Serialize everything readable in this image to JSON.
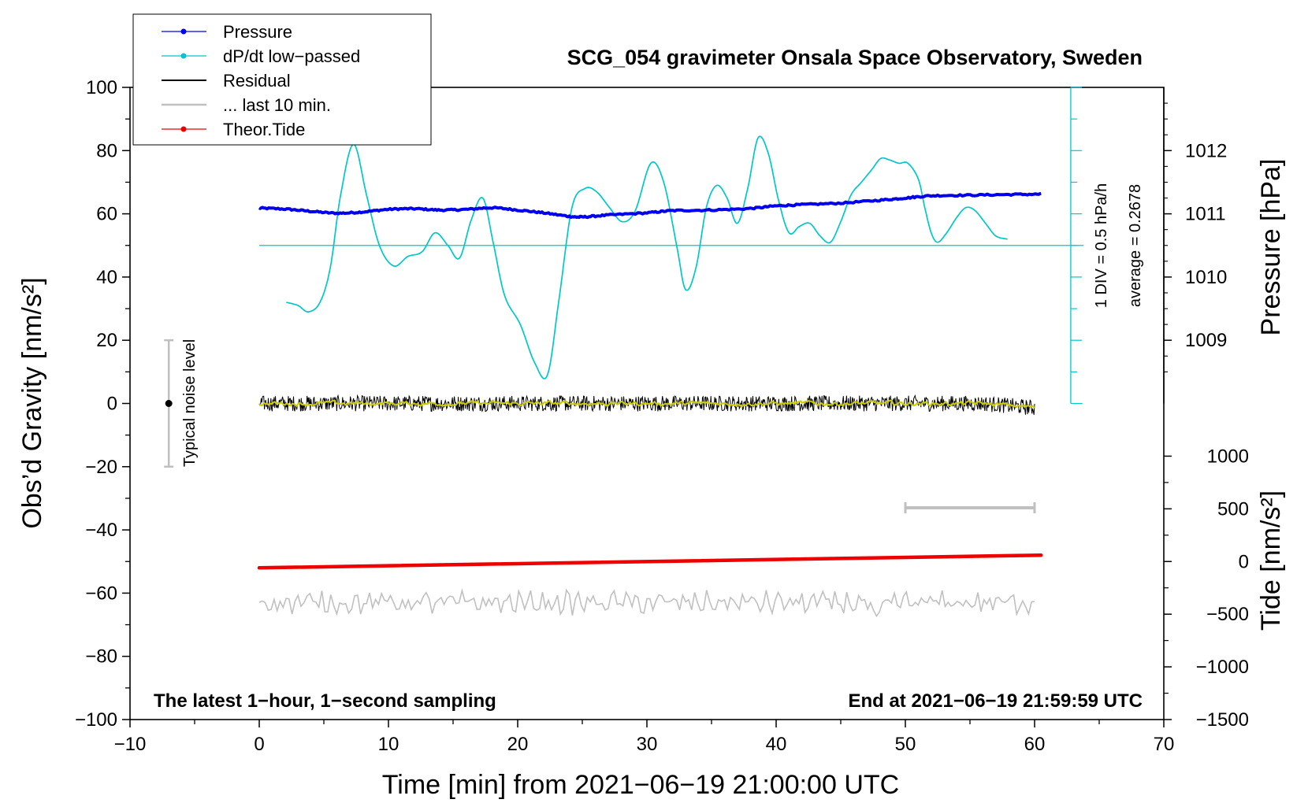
{
  "chart_data": {
    "type": "line",
    "title": "SCG_054 gravimeter Onsala Space Observatory, Sweden",
    "xlabel": "Time [min] from 2021−06−19 21:00:00 UTC",
    "ylabel_left": "Obs’d Gravity [nm/s²]",
    "ylabel_right_pressure": "Pressure [hPa]",
    "ylabel_right_tide": "Tide [nm/s²]",
    "xlim": [
      -10,
      70
    ],
    "ylim_left": [
      -100,
      100
    ],
    "x_ticks": [
      -10,
      0,
      10,
      20,
      30,
      40,
      50,
      60,
      70
    ],
    "x_tick_labels": [
      "−10",
      "0",
      "10",
      "20",
      "30",
      "40",
      "50",
      "60",
      "70"
    ],
    "y_ticks_left": [
      -100,
      -80,
      -60,
      -40,
      -20,
      0,
      20,
      40,
      60,
      80,
      100
    ],
    "y_tick_labels_left": [
      "−100",
      "−80",
      "−60",
      "−40",
      "−20",
      "0",
      "20",
      "40",
      "60",
      "80",
      "100"
    ],
    "pressure_axis": {
      "ticks": [
        1009,
        1010,
        1011,
        1012
      ],
      "tick_labels": [
        "1009",
        "1010",
        "1011",
        "1012"
      ],
      "ref_value": 1011,
      "ref_gravity": 60,
      "gravity_per_hpa": 20
    },
    "tide_axis": {
      "ticks": [
        -1500,
        -1000,
        -500,
        0,
        500,
        1000
      ],
      "tick_labels": [
        "−1500",
        "−1000",
        "−500",
        "0",
        "500",
        "1000"
      ],
      "gravity_at_zero": -50,
      "gravity_per_unit": 0.03333
    },
    "legend": [
      {
        "name": "Pressure",
        "color": "#0000ee",
        "marker": true
      },
      {
        "name": "dP/dt low−passed",
        "color": "#00c8c8",
        "marker": true
      },
      {
        "name": "Residual",
        "color": "#000000",
        "marker": false
      },
      {
        "name": "... last 10 min.",
        "color": "#c0c0c0",
        "marker": false
      },
      {
        "name": "Theor.Tide",
        "color": "#ee0000",
        "marker": true
      }
    ],
    "series": [
      {
        "name": "Pressure",
        "color": "#0000ee",
        "x": [
          0,
          2,
          4,
          6,
          8,
          10,
          12,
          14,
          16,
          18,
          20,
          22,
          24,
          25,
          27,
          30,
          32,
          35,
          38,
          40,
          42,
          45,
          48,
          50,
          52,
          55,
          58,
          60.5
        ],
        "y": [
          61.8,
          61.5,
          60.8,
          60.2,
          60.6,
          61.4,
          61.6,
          61.2,
          61.4,
          61.9,
          61.2,
          60.3,
          59.2,
          59.0,
          59.6,
          60.3,
          61.0,
          61.2,
          61.7,
          62.5,
          62.9,
          63.4,
          64.3,
          65.0,
          65.7,
          65.9,
          66.1,
          66.2
        ]
      },
      {
        "name": "dP/dt low−passed",
        "color": "#00c8c8",
        "x": [
          2.1,
          3,
          3.8,
          4.7,
          5.5,
          6.3,
          7.3,
          8.3,
          9.3,
          10.4,
          11.5,
          12.6,
          13.6,
          14.6,
          15.5,
          16.4,
          17.3,
          18.1,
          19,
          20.2,
          21.3,
          22.3,
          23.2,
          24.2,
          25.2,
          26.1,
          27.1,
          28.1,
          29.1,
          30.3,
          31.3,
          32.3,
          33,
          33.8,
          34.6,
          35.4,
          36.2,
          37,
          37.8,
          38.6,
          39.4,
          40.2,
          41,
          41.8,
          42.6,
          43.4,
          44.2,
          45,
          45.8,
          46.6,
          47.4,
          48.1,
          48.8,
          49.5,
          50.2,
          51,
          51.5,
          52,
          52.5,
          53.2,
          54,
          54.7,
          55.4,
          56.2,
          57,
          57.9
        ],
        "y": [
          32,
          31,
          29,
          32,
          43,
          66,
          82,
          66,
          50,
          43.5,
          46.5,
          48,
          54,
          50,
          46,
          58,
          65,
          51,
          34,
          25,
          13,
          9,
          33,
          62,
          68,
          67,
          62,
          57.5,
          61,
          76,
          70,
          50,
          36,
          43,
          62,
          69,
          65,
          57,
          68,
          84,
          79,
          64,
          54,
          56,
          57,
          53,
          51,
          57.5,
          66,
          70,
          74,
          77.5,
          77,
          76,
          76,
          71,
          62,
          54,
          51,
          54,
          59,
          62,
          61,
          57,
          53,
          52
        ]
      },
      {
        "name": "Residual",
        "color": "#000000",
        "x_range": [
          0,
          60
        ],
        "mean": 0,
        "noise_amplitude": 2.5
      },
      {
        "name": "Residual smoothed",
        "color": "#cccc00",
        "x_range": [
          0,
          60
        ],
        "mean": 0,
        "noise_amplitude": 0.8
      },
      {
        "name": "... last 10 min.",
        "color": "#c0c0c0",
        "x_range": [
          0,
          60
        ],
        "mean": -63,
        "noise_amplitude": 2.5
      },
      {
        "name": "Theor.Tide",
        "color": "#ee0000",
        "x": [
          0,
          60.5
        ],
        "y": [
          -52,
          -48
        ]
      }
    ],
    "dpdt_reference_line": {
      "y": 50,
      "x_range": [
        0,
        63.8
      ],
      "color": "#00c8c8"
    },
    "dpdt_scale_axis": {
      "x": 62.8,
      "y_range": [
        0,
        100
      ],
      "major_step": 20,
      "minor_step": 10
    },
    "noise_bar": {
      "x": -7,
      "center": 0,
      "half_height": 20,
      "label": "Typical noise level",
      "color": "#c0c0c0"
    },
    "ten_min_bar": {
      "x_start": 50,
      "x_end": 60,
      "y": -33,
      "color": "#c0c0c0"
    },
    "annotations": {
      "div_label": "1 DIV = 0.5 hPa/h",
      "average_label": "average = 0.2678",
      "bottom_left": "The latest 1−hour, 1−second sampling",
      "bottom_right": "End at 2021−06−19 21:59:59 UTC"
    }
  }
}
